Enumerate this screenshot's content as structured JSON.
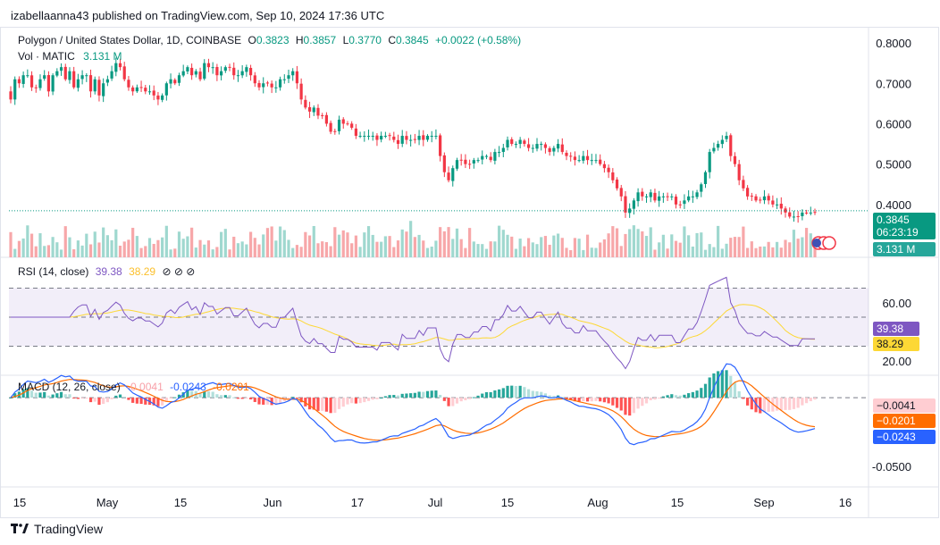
{
  "byline": "izabellaanna43 published on TradingView.com, Sep 10, 2024 17:36 UTC",
  "header": {
    "symbol": "Polygon / United States Dollar, 1D, COINBASE",
    "o_label": "O",
    "o": "0.3823",
    "h_label": "H",
    "h": "0.3857",
    "l_label": "L",
    "l": "0.3770",
    "c_label": "C",
    "c": "0.3845",
    "change": "+0.0022 (+0.58%)",
    "vol_label": "Vol · MATIC",
    "vol": "3.131 M"
  },
  "price_axis": {
    "ticks": [
      "0.8000",
      "0.7000",
      "0.6000",
      "0.5000",
      "0.4000"
    ],
    "last_price": "0.3845",
    "countdown": "06:23:19",
    "last_volume": "3.131 M"
  },
  "rsi": {
    "label": "RSI (14, close)",
    "value": "39.38",
    "ma": "38.29",
    "extra": "⊘ ⊘ ⊘",
    "ticks": [
      "60.00",
      "20.00"
    ],
    "badge_rsi": "39.38",
    "badge_ma": "38.29"
  },
  "macd": {
    "label": "MACD (12, 26, close)",
    "hist": "-0.0041",
    "macd": "-0.0243",
    "signal": "-0.0201",
    "ticks": [
      "-0.0500"
    ],
    "badge_hist": "−0.0041",
    "badge_signal": "−0.0201",
    "badge_macd": "−0.0243"
  },
  "time_axis": [
    "15",
    "May",
    "15",
    "Jun",
    "17",
    "Jul",
    "15",
    "Aug",
    "15",
    "Sep",
    "16"
  ],
  "footer": {
    "brand": "TradingView"
  },
  "colors": {
    "up": "#089981",
    "down": "#f23645",
    "rsi": "#7e57c2",
    "rsi_ma": "#fdd835",
    "macd": "#2962ff",
    "signal": "#ff6d00"
  },
  "chart_data": {
    "type": "candlestick",
    "title": "Polygon / United States Dollar, 1D, COINBASE",
    "x_start": "2024-04-12",
    "ylim": [
      0.34,
      0.82
    ],
    "yticks": [
      0.8,
      0.7,
      0.6,
      0.5,
      0.4
    ],
    "close": [
      0.66,
      0.71,
      0.7,
      0.72,
      0.72,
      0.69,
      0.69,
      0.71,
      0.72,
      0.68,
      0.72,
      0.73,
      0.74,
      0.71,
      0.73,
      0.69,
      0.71,
      0.72,
      0.72,
      0.68,
      0.71,
      0.67,
      0.7,
      0.71,
      0.73,
      0.75,
      0.74,
      0.71,
      0.69,
      0.68,
      0.69,
      0.69,
      0.68,
      0.68,
      0.67,
      0.66,
      0.67,
      0.7,
      0.71,
      0.7,
      0.72,
      0.73,
      0.74,
      0.72,
      0.73,
      0.71,
      0.75,
      0.74,
      0.74,
      0.72,
      0.73,
      0.74,
      0.74,
      0.72,
      0.72,
      0.73,
      0.74,
      0.72,
      0.7,
      0.69,
      0.7,
      0.7,
      0.69,
      0.69,
      0.71,
      0.71,
      0.72,
      0.73,
      0.7,
      0.66,
      0.64,
      0.63,
      0.64,
      0.62,
      0.62,
      0.6,
      0.58,
      0.58,
      0.61,
      0.6,
      0.6,
      0.59,
      0.57,
      0.57,
      0.57,
      0.57,
      0.57,
      0.56,
      0.57,
      0.57,
      0.57,
      0.56,
      0.55,
      0.57,
      0.56,
      0.56,
      0.56,
      0.57,
      0.56,
      0.57,
      0.57,
      0.57,
      0.52,
      0.48,
      0.46,
      0.49,
      0.51,
      0.51,
      0.5,
      0.5,
      0.51,
      0.51,
      0.52,
      0.52,
      0.51,
      0.53,
      0.53,
      0.54,
      0.56,
      0.55,
      0.55,
      0.56,
      0.55,
      0.54,
      0.54,
      0.55,
      0.55,
      0.54,
      0.53,
      0.54,
      0.55,
      0.53,
      0.52,
      0.52,
      0.51,
      0.51,
      0.52,
      0.51,
      0.51,
      0.51,
      0.5,
      0.49,
      0.48,
      0.46,
      0.44,
      0.42,
      0.38,
      0.39,
      0.41,
      0.43,
      0.42,
      0.42,
      0.43,
      0.41,
      0.42,
      0.42,
      0.42,
      0.42,
      0.4,
      0.4,
      0.41,
      0.42,
      0.42,
      0.43,
      0.45,
      0.48,
      0.53,
      0.54,
      0.55,
      0.56,
      0.57,
      0.52,
      0.5,
      0.46,
      0.44,
      0.42,
      0.42,
      0.41,
      0.41,
      0.42,
      0.41,
      0.4,
      0.4,
      0.39,
      0.38,
      0.37,
      0.37,
      0.37,
      0.38,
      0.38,
      0.38,
      0.38
    ],
    "volume_note": "relative bars",
    "rsi_ylim": [
      10,
      90
    ],
    "rsi_yticks": [
      60,
      20
    ],
    "rsi_bands": [
      70,
      50,
      30
    ],
    "macd_ylim": [
      -0.065,
      0.015
    ],
    "macd_yticks": [
      -0.05
    ]
  }
}
